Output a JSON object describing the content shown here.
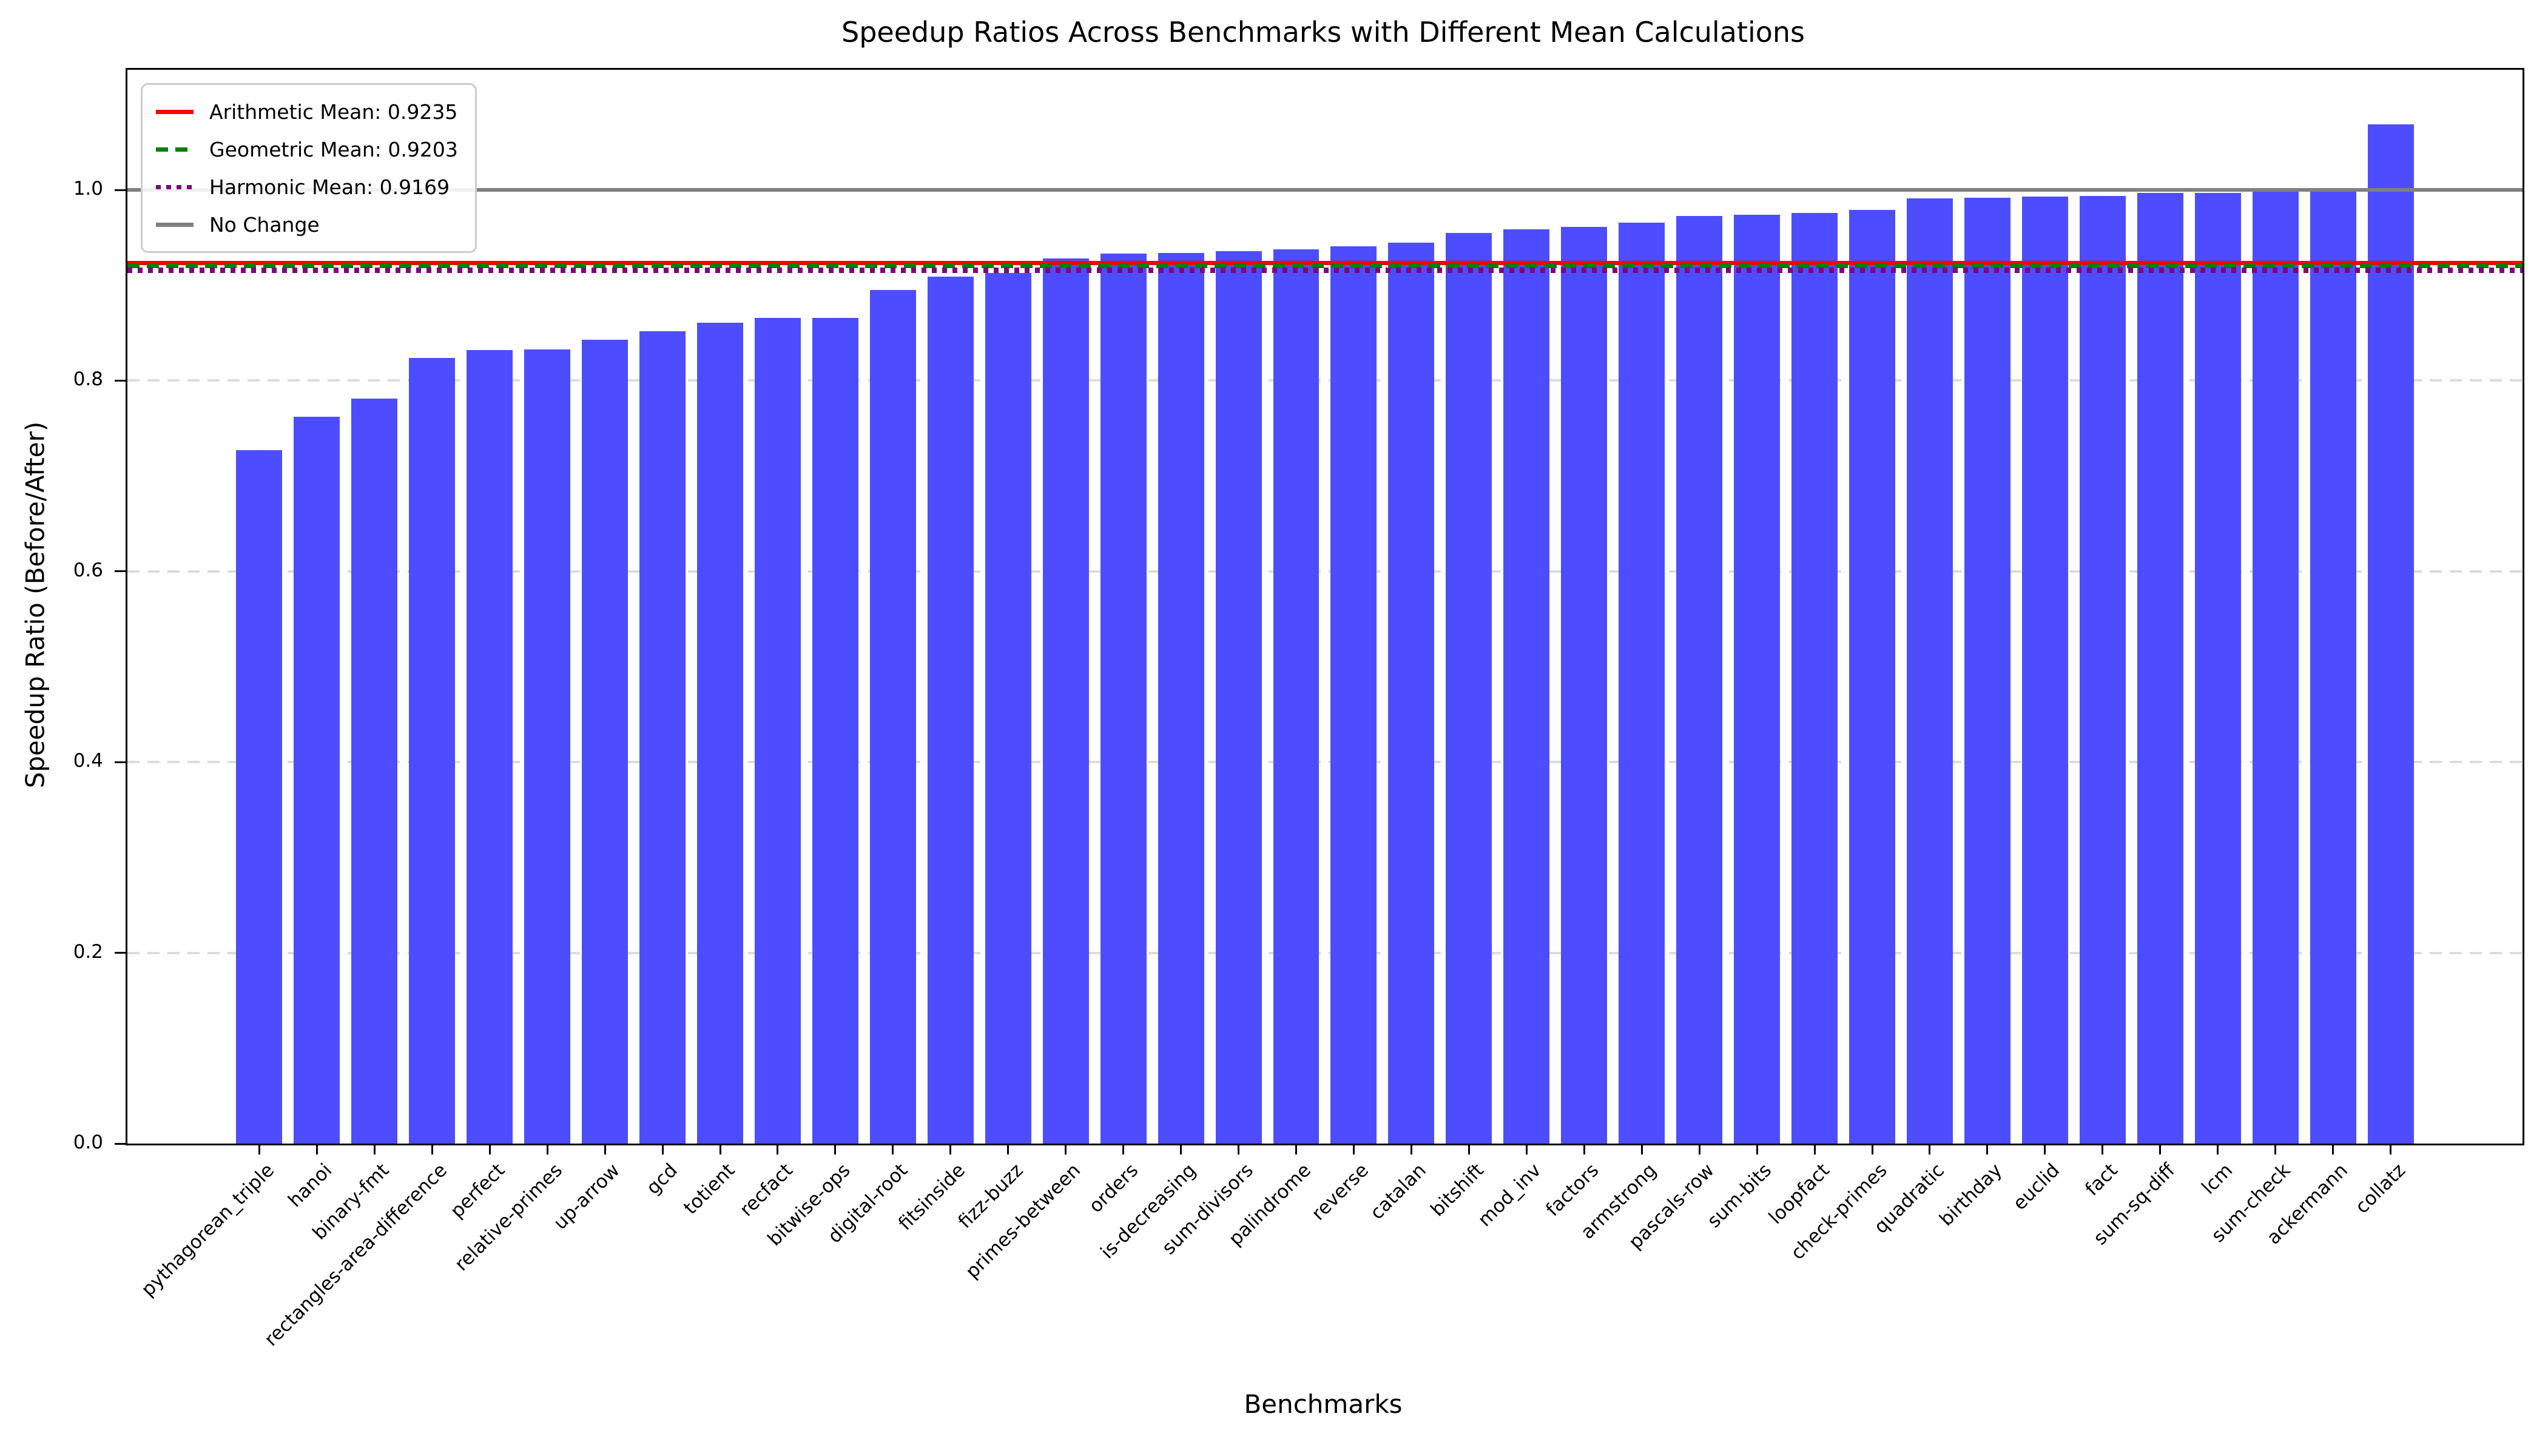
{
  "title": "Speedup Ratios Across Benchmarks with Different Mean Calculations",
  "xlabel": "Benchmarks",
  "ylabel": "Speedup Ratio (Before/After)",
  "legend": {
    "items": [
      {
        "label": "Arithmetic Mean: 0.9235",
        "color": "#ff0000",
        "style": "solid"
      },
      {
        "label": "Geometric Mean: 0.9203",
        "color": "#008000",
        "style": "dashed"
      },
      {
        "label": "Harmonic Mean: 0.9169",
        "color": "#800080",
        "style": "dotted"
      },
      {
        "label": "No Change",
        "color": "#808080",
        "style": "solid"
      }
    ]
  },
  "chart_data": {
    "type": "bar",
    "title": "Speedup Ratios Across Benchmarks with Different Mean Calculations",
    "xlabel": "Benchmarks",
    "ylabel": "Speedup Ratio (Before/After)",
    "bar_color": "#4d4dff",
    "grid": "horizontal-dashed",
    "legend_position": "upper left",
    "ylim": [
      0,
      1.126
    ],
    "yticks": [
      0.0,
      0.2,
      0.4,
      0.6,
      0.8,
      1.0
    ],
    "yticklabels": [
      "0.0",
      "0.2",
      "0.4",
      "0.6",
      "0.8",
      "1.0"
    ],
    "categories": [
      "pythagorean_triple",
      "hanoi",
      "binary-fmt",
      "rectangles-area-difference",
      "perfect",
      "relative-primes",
      "up-arrow",
      "gcd",
      "totient",
      "recfact",
      "bitwise-ops",
      "digital-root",
      "fitsinside",
      "fizz-buzz",
      "primes-between",
      "orders",
      "is-decreasing",
      "sum-divisors",
      "palindrome",
      "reverse",
      "catalan",
      "bitshift",
      "mod_inv",
      "factors",
      "armstrong",
      "pascals-row",
      "sum-bits",
      "loopfact",
      "check-primes",
      "quadratic",
      "birthday",
      "euclid",
      "fact",
      "sum-sq-diff",
      "lcm",
      "sum-check",
      "ackermann",
      "collatz"
    ],
    "values": [
      0.727,
      0.762,
      0.781,
      0.824,
      0.832,
      0.833,
      0.843,
      0.852,
      0.861,
      0.866,
      0.866,
      0.895,
      0.909,
      0.913,
      0.928,
      0.933,
      0.934,
      0.936,
      0.938,
      0.941,
      0.945,
      0.955,
      0.959,
      0.961,
      0.966,
      0.973,
      0.974,
      0.976,
      0.979,
      0.991,
      0.992,
      0.993,
      0.994,
      0.997,
      0.997,
      0.998,
      0.999,
      1.069
    ],
    "reference_lines": [
      {
        "label": "Arithmetic Mean: 0.9235",
        "value": 0.9235,
        "color": "#ff0000",
        "style": "solid"
      },
      {
        "label": "Geometric Mean: 0.9203",
        "value": 0.9203,
        "color": "#008000",
        "style": "dashed"
      },
      {
        "label": "Harmonic Mean: 0.9169",
        "value": 0.9169,
        "color": "#800080",
        "style": "dotted"
      },
      {
        "label": "No Change",
        "value": 1.0,
        "color": "#808080",
        "style": "solid"
      }
    ]
  }
}
